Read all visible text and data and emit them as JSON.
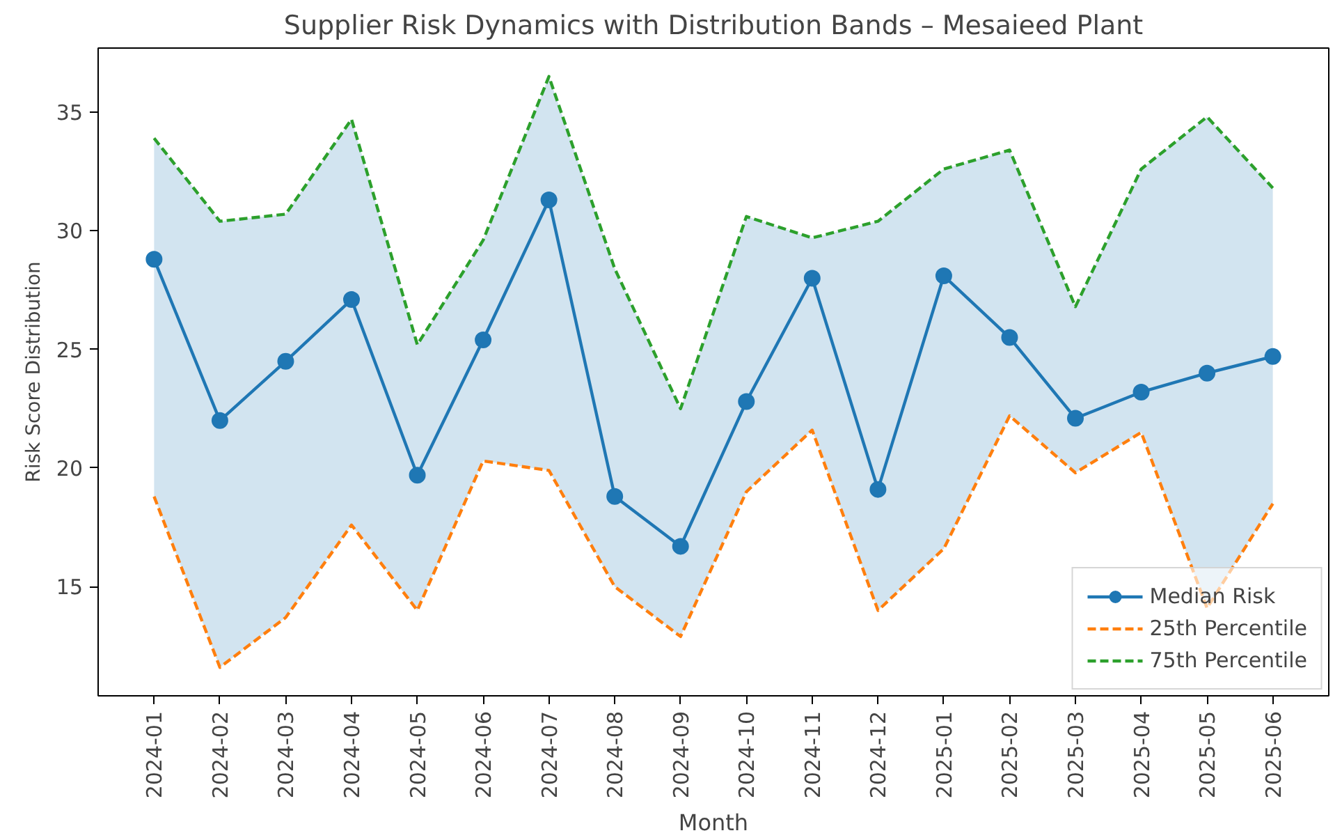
{
  "chart_data": {
    "type": "line",
    "title": "Supplier Risk Dynamics with Distribution Bands – Mesaieed Plant",
    "xlabel": "Month",
    "ylabel": "Risk Score Distribution",
    "categories": [
      "2024-01",
      "2024-02",
      "2024-03",
      "2024-04",
      "2024-05",
      "2024-06",
      "2024-07",
      "2024-08",
      "2024-09",
      "2024-10",
      "2024-11",
      "2024-12",
      "2025-01",
      "2025-02",
      "2025-03",
      "2025-04",
      "2025-05",
      "2025-06"
    ],
    "series": [
      {
        "name": "Median Risk",
        "color": "#1f77b4",
        "marker": "circle",
        "line_style": "solid",
        "values": [
          28.8,
          22.0,
          24.5,
          27.1,
          19.7,
          25.4,
          31.3,
          18.8,
          16.7,
          22.8,
          28.0,
          19.1,
          28.1,
          25.5,
          22.1,
          23.2,
          24.0,
          24.7
        ],
        "lower": [
          18.8,
          11.6,
          13.7,
          17.6,
          14.0,
          20.3,
          19.9,
          15.0,
          12.9,
          19.0,
          21.6,
          14.0,
          16.6,
          22.2,
          19.8,
          21.5,
          14.1,
          18.5
        ],
        "upper": [
          33.9,
          30.4,
          30.7,
          34.7,
          25.2,
          29.6,
          36.5,
          28.4,
          22.5,
          30.6,
          29.7,
          30.4,
          32.6,
          33.4,
          26.8,
          32.6,
          34.8,
          31.8
        ]
      },
      {
        "name": "25th Percentile",
        "color": "#ff7f0e",
        "marker": "none",
        "line_style": "dashed",
        "values": [
          18.8,
          11.6,
          13.7,
          17.6,
          14.0,
          20.3,
          19.9,
          15.0,
          12.9,
          19.0,
          21.6,
          14.0,
          16.6,
          22.2,
          19.8,
          21.5,
          14.1,
          18.5
        ]
      },
      {
        "name": "75th Percentile",
        "color": "#2ca02c",
        "marker": "none",
        "line_style": "dashed",
        "values": [
          33.9,
          30.4,
          30.7,
          34.7,
          25.2,
          29.6,
          36.5,
          28.4,
          22.5,
          30.6,
          29.7,
          30.4,
          32.6,
          33.4,
          26.8,
          32.6,
          34.8,
          31.8
        ]
      }
    ],
    "ylim": [
      10.4,
      37.7
    ],
    "yticks": [
      15,
      20,
      25,
      30,
      35
    ],
    "grid": false,
    "legend": "bottom right"
  }
}
